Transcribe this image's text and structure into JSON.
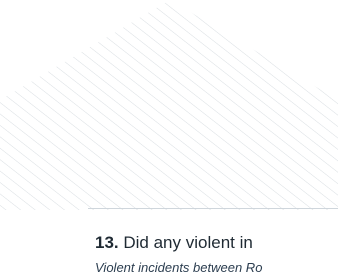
{
  "question": {
    "number": "13.",
    "text": "Did any violent in",
    "subtitle": "Violent incidents between Ro"
  }
}
